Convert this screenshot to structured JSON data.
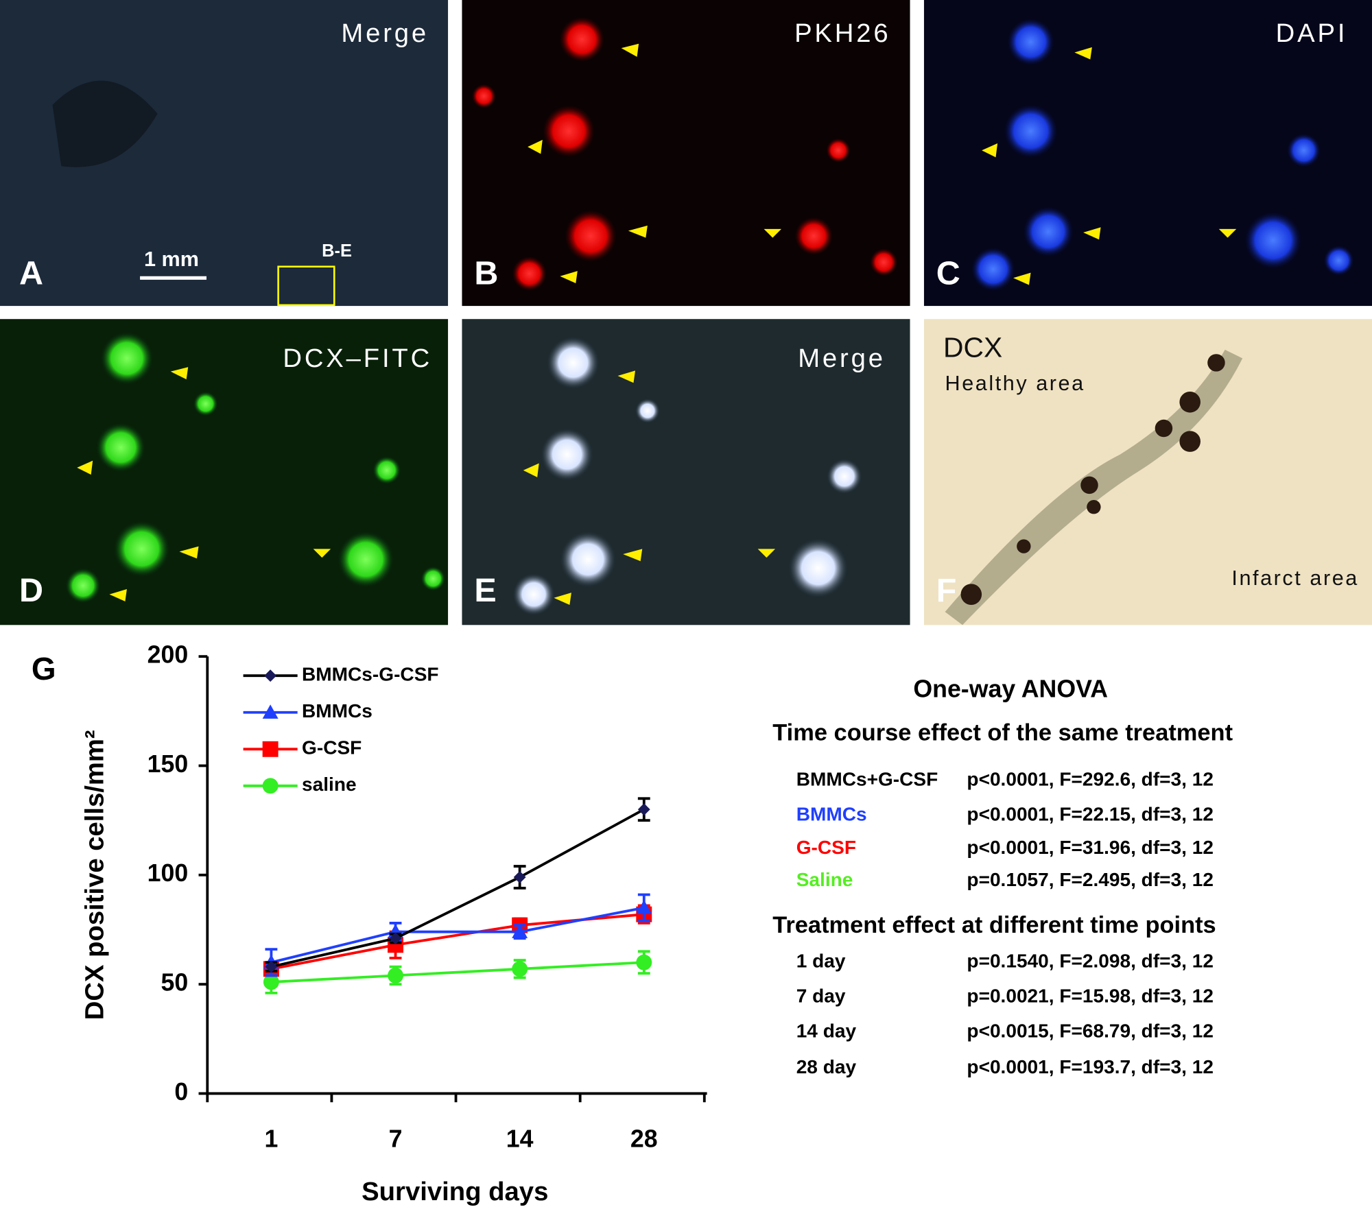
{
  "panels": [
    {
      "letter": "A",
      "label": "Merge",
      "scale": "1 mm",
      "inset": "B-E"
    },
    {
      "letter": "B",
      "label": "PKH26"
    },
    {
      "letter": "C",
      "label": "DAPI"
    },
    {
      "letter": "D",
      "label": "DCX–FITC"
    },
    {
      "letter": "E",
      "label": "Merge"
    },
    {
      "letter": "F",
      "label": "DCX",
      "annotations": [
        "Healthy area",
        "Infarct area"
      ]
    }
  ],
  "chart_data": {
    "type": "line",
    "panel_letter": "G",
    "x_label": "Surviving days",
    "y_label": "DCX positive cells/mm²",
    "categories": [
      "1",
      "7",
      "14",
      "28"
    ],
    "ylim": [
      0,
      200
    ],
    "yticks": [
      0,
      50,
      100,
      150,
      200
    ],
    "series": [
      {
        "name": "BMMCs-G-CSF",
        "color": "#000000",
        "marker": "diamond",
        "values": [
          58,
          71,
          99,
          130
        ],
        "errors": [
          2,
          2,
          5,
          5
        ]
      },
      {
        "name": "BMMCs",
        "color": "#1f3fff",
        "marker": "triangle",
        "values": [
          60,
          74,
          74,
          85
        ],
        "errors": [
          6,
          4,
          3,
          6
        ]
      },
      {
        "name": "G-CSF",
        "color": "#ff0000",
        "marker": "square",
        "values": [
          57,
          68,
          77,
          82
        ],
        "errors": [
          3,
          6,
          3,
          4
        ]
      },
      {
        "name": "saline",
        "color": "#33ee22",
        "marker": "circle",
        "values": [
          51,
          54,
          57,
          60
        ],
        "errors": [
          5,
          4,
          4,
          5
        ]
      }
    ]
  },
  "anova": {
    "title": "One-way ANOVA",
    "sections": [
      {
        "heading": "Time course effect of the same treatment",
        "rows": [
          {
            "label": "BMMCs+G-CSF",
            "color": "#000000",
            "stats": "p<0.0001, F=292.6, df=3, 12"
          },
          {
            "label": "BMMCs",
            "color": "#1f3fff",
            "stats": "p<0.0001, F=22.15, df=3, 12"
          },
          {
            "label": "G-CSF",
            "color": "#ff0000",
            "stats": "p<0.0001, F=31.96, df=3, 12"
          },
          {
            "label": "Saline",
            "color": "#55ee22",
            "stats": "p=0.1057, F=2.495, df=3, 12"
          }
        ]
      },
      {
        "heading": "Treatment effect at different time points",
        "rows": [
          {
            "label": "1 day",
            "color": "#000000",
            "stats": "p=0.1540, F=2.098, df=3, 12"
          },
          {
            "label": "7 day",
            "color": "#000000",
            "stats": "p=0.0021, F=15.98, df=3, 12"
          },
          {
            "label": "14 day",
            "color": "#000000",
            "stats": "p<0.0015, F=68.79, df=3, 12"
          },
          {
            "label": "28 day",
            "color": "#000000",
            "stats": "p<0.0001, F=193.7, df=3, 12"
          }
        ]
      }
    ]
  }
}
